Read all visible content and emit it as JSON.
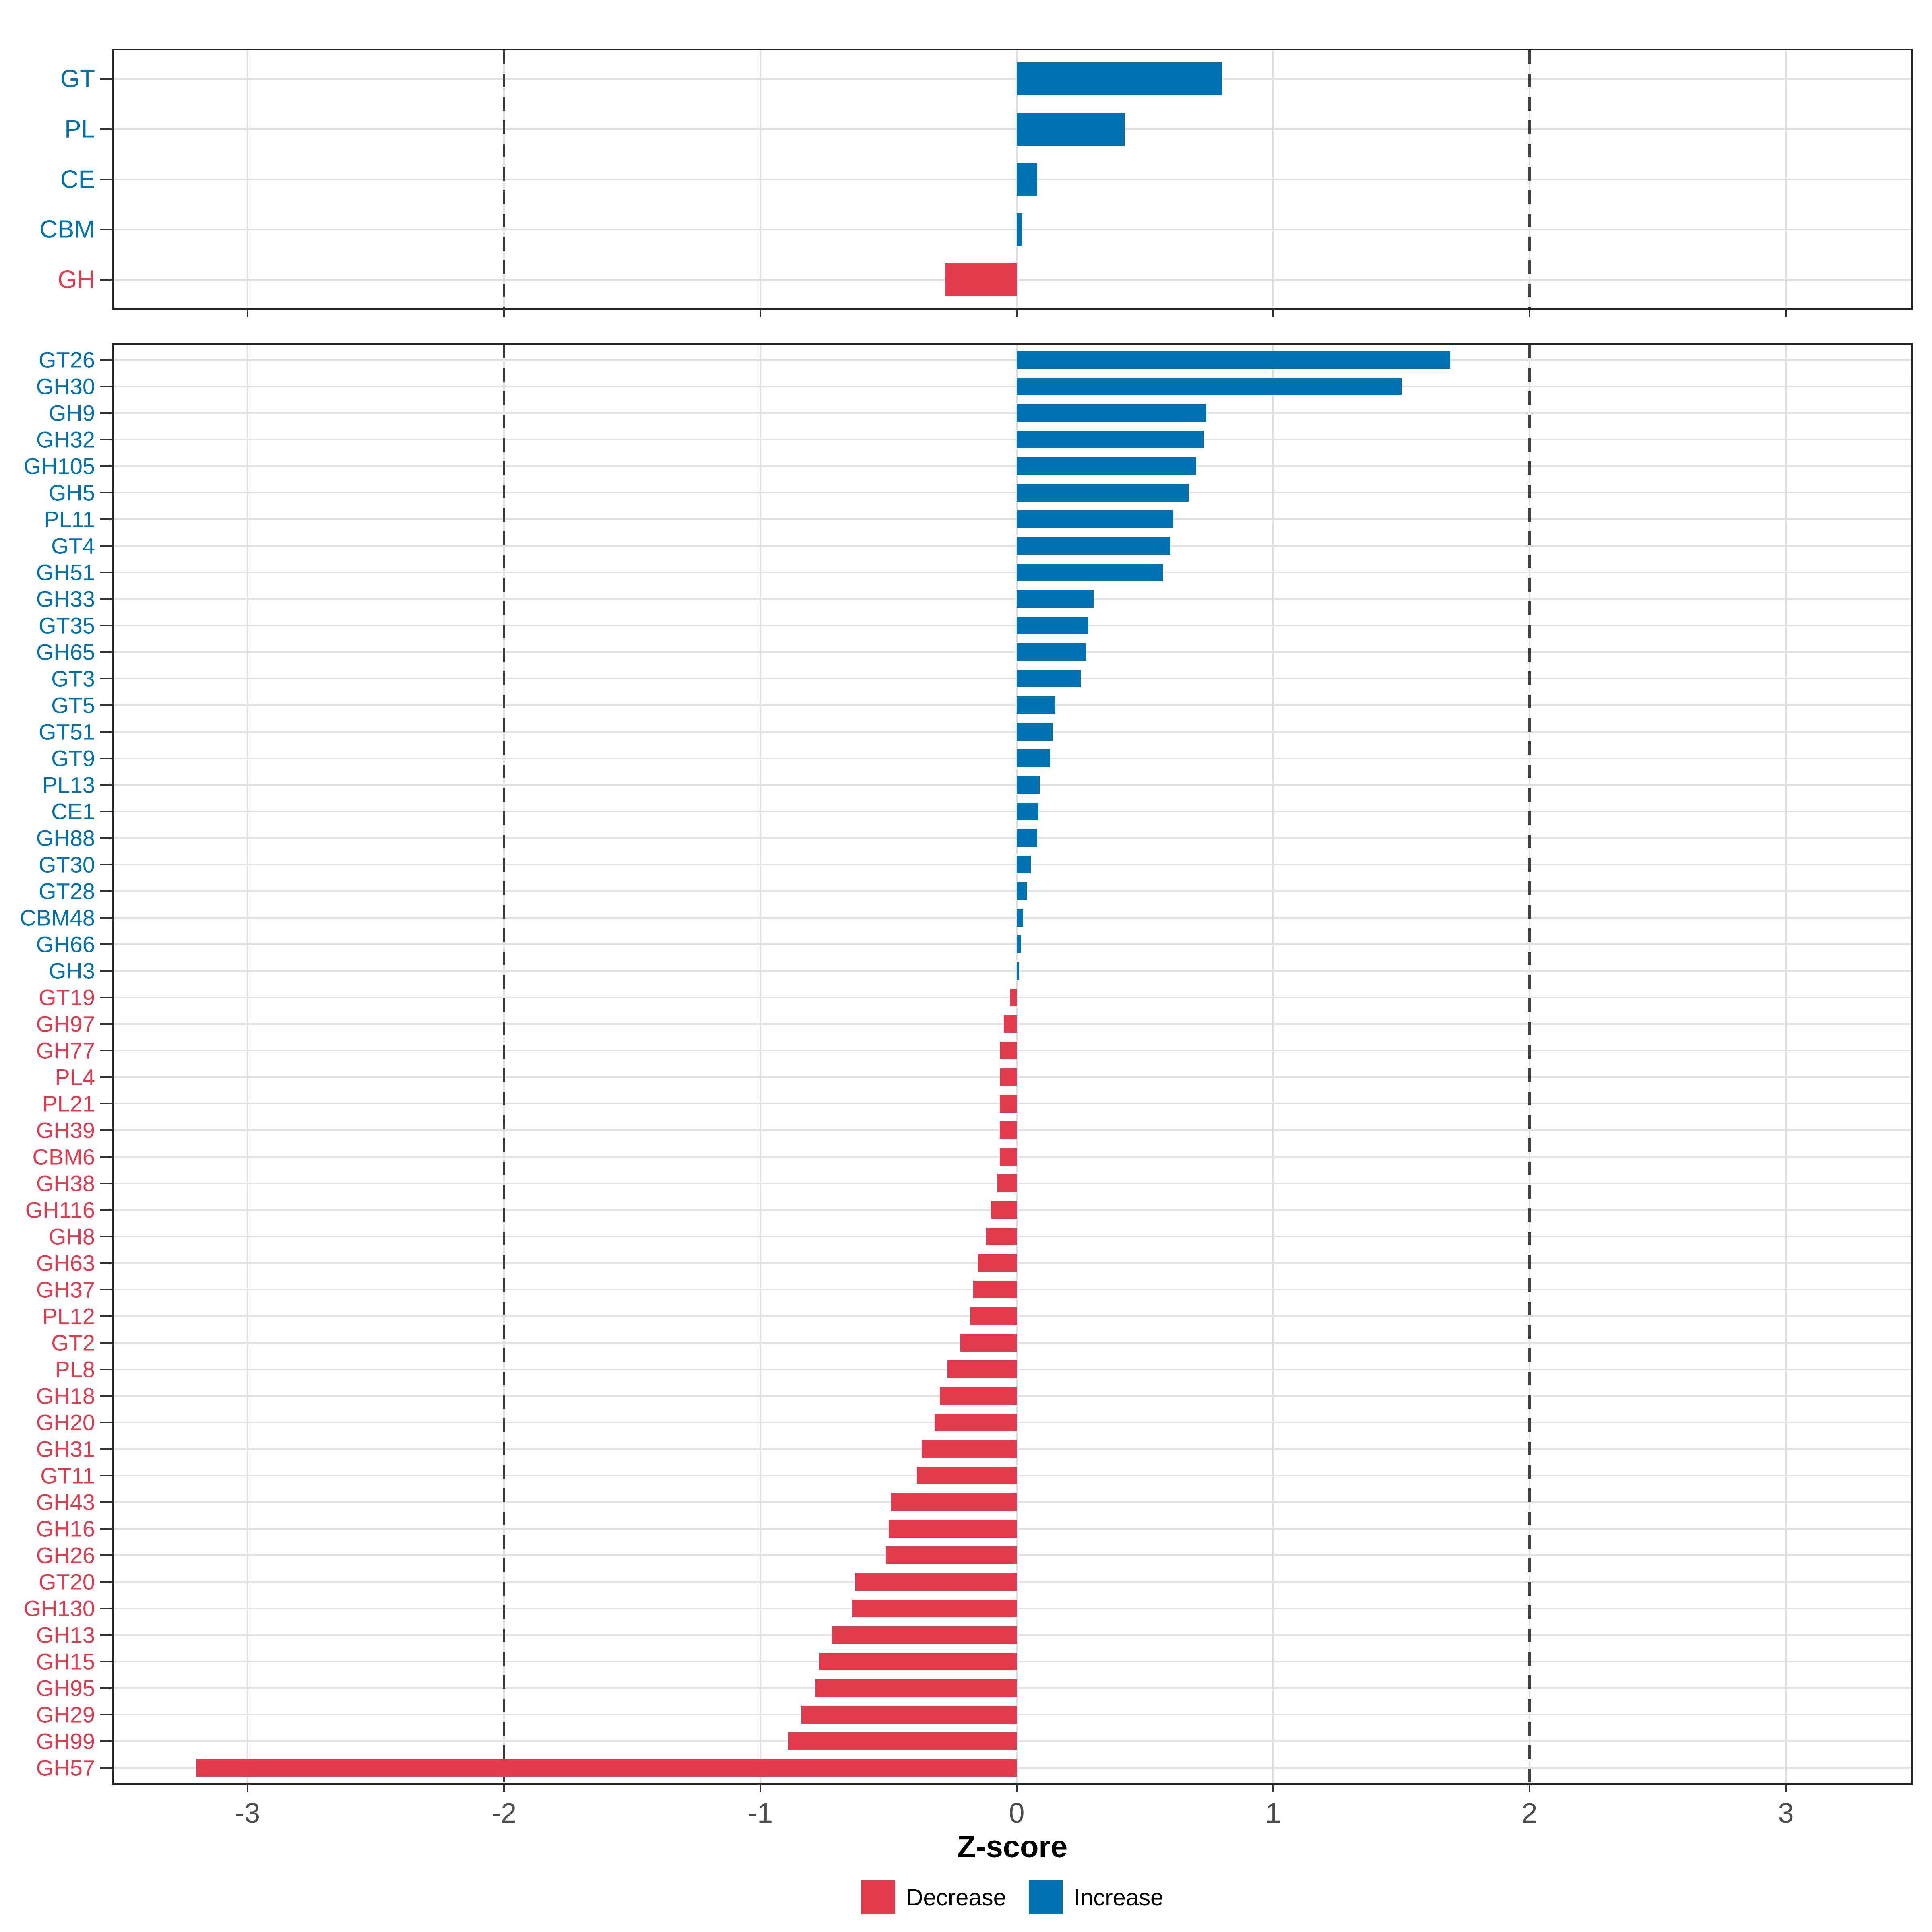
{
  "axis": {
    "title": "Z-score",
    "ticks": [
      -3,
      -2,
      -1,
      0,
      1,
      2,
      3
    ],
    "tick_labels": [
      "-3",
      "-2",
      "-1",
      "0",
      "1",
      "2",
      "3"
    ],
    "xlim": [
      -3.51,
      3.49
    ],
    "dashed_guides": [
      -2,
      2
    ],
    "grid": "major-only"
  },
  "colors": {
    "increase": "#0072B2",
    "decrease": "#E23B4E",
    "gridline": "#e2e2e2",
    "dashed_guide": "#3d3d3d",
    "panel_border": "#252525",
    "tick_mark": "#333333",
    "tick_label": "#4d4d4d",
    "background": "#ffffff"
  },
  "legend": {
    "items": [
      {
        "label": "Decrease",
        "color": "#E23B4E",
        "direction": "negative"
      },
      {
        "label": "Increase",
        "color": "#0072B2",
        "direction": "positive"
      }
    ]
  },
  "chart_data": [
    {
      "id": "cazyme-class-panel",
      "type": "bar",
      "orientation": "horizontal",
      "title": "",
      "xlabel": "Z-score",
      "ylabel": "",
      "categories": [
        "GT",
        "PL",
        "CE",
        "CBM",
        "GH"
      ],
      "values": [
        0.8,
        0.42,
        0.08,
        0.02,
        -0.28
      ],
      "xlim": [
        -3.51,
        3.49
      ],
      "legend_position": "none"
    },
    {
      "id": "cazyme-family-panel",
      "type": "bar",
      "orientation": "horizontal",
      "title": "",
      "xlabel": "Z-score",
      "ylabel": "",
      "categories": [
        "GT26",
        "GH30",
        "GH9",
        "GH32",
        "GH105",
        "GH5",
        "PL11",
        "GT4",
        "GH51",
        "GH33",
        "GT35",
        "GH65",
        "GT3",
        "GT5",
        "GT51",
        "GT9",
        "PL13",
        "CE1",
        "GH88",
        "GT30",
        "GT28",
        "CBM48",
        "GH66",
        "GH3",
        "GT19",
        "GH97",
        "GH77",
        "PL4",
        "PL21",
        "GH39",
        "CBM6",
        "GH38",
        "GH116",
        "GH8",
        "GH63",
        "GH37",
        "PL12",
        "GT2",
        "PL8",
        "GH18",
        "GH20",
        "GH31",
        "GT11",
        "GH43",
        "GH16",
        "GH26",
        "GT20",
        "GH130",
        "GH13",
        "GH15",
        "GH95",
        "GH29",
        "GH99",
        "GH57"
      ],
      "values": [
        1.69,
        1.5,
        0.74,
        0.73,
        0.7,
        0.67,
        0.61,
        0.6,
        0.57,
        0.3,
        0.28,
        0.27,
        0.25,
        0.15,
        0.14,
        0.13,
        0.09,
        0.085,
        0.08,
        0.055,
        0.04,
        0.025,
        0.015,
        0.01,
        -0.025,
        -0.05,
        -0.065,
        -0.065,
        -0.066,
        -0.066,
        -0.066,
        -0.075,
        -0.1,
        -0.12,
        -0.15,
        -0.17,
        -0.18,
        -0.22,
        -0.27,
        -0.3,
        -0.32,
        -0.37,
        -0.39,
        -0.49,
        -0.5,
        -0.51,
        -0.63,
        -0.64,
        -0.72,
        -0.77,
        -0.785,
        -0.84,
        -0.89,
        -3.2
      ],
      "xlim": [
        -3.51,
        3.49
      ],
      "legend_position": "bottom"
    }
  ]
}
